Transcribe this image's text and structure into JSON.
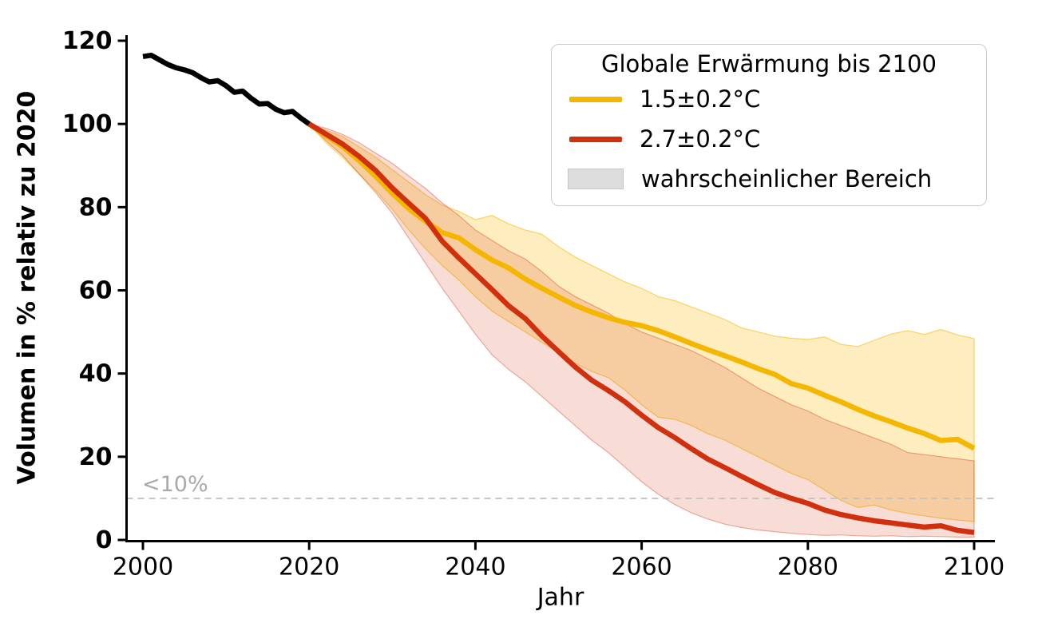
{
  "chart_data": {
    "type": "line",
    "title": "",
    "xlabel": "Jahr",
    "ylabel": "Volumen in % relativ zu 2020",
    "x_ticks": [
      2000,
      2020,
      2040,
      2060,
      2080,
      2100
    ],
    "y_ticks": [
      0,
      20,
      40,
      60,
      80,
      100,
      120
    ],
    "xlim": [
      1998,
      2102.2
    ],
    "ylim": [
      0,
      121.5
    ],
    "grid": false,
    "threshold": {
      "label": "<10%",
      "value": 10,
      "line_color": "#c2c2c2",
      "text_color": "#a9a9a9",
      "style": "dashed"
    },
    "legend": {
      "title": "Globale Erwärmung bis 2100",
      "position": "upper right",
      "entries": [
        {
          "label": "1.5±0.2°C",
          "color": "#f5b600",
          "type": "line"
        },
        {
          "label": "2.7±0.2°C",
          "color": "#d0300e",
          "type": "line"
        },
        {
          "label": "wahrscheinlicher Bereich",
          "color": "#dcdcdc",
          "type": "patch"
        }
      ]
    },
    "series": [
      {
        "id": "beobachtung",
        "type": "line",
        "color": "#000000",
        "x": [
          2000,
          2001,
          2002,
          2003,
          2004,
          2005,
          2006,
          2007,
          2008,
          2009,
          2010,
          2011,
          2012,
          2013,
          2014,
          2015,
          2016,
          2017,
          2018,
          2019,
          2020
        ],
        "y": [
          116.2,
          116.5,
          115.4,
          114.3,
          113.5,
          113.0,
          112.3,
          111.1,
          110.1,
          110.4,
          109.2,
          107.6,
          107.9,
          106.2,
          104.8,
          104.9,
          103.5,
          102.7,
          103.0,
          101.4,
          100.0
        ]
      },
      {
        "id": "szenario-1p5",
        "label": "1.5±0.2°C",
        "type": "line-with-band",
        "color": "#f5b600",
        "band_fill": "rgba(246,182,0,0.25)",
        "band_edge": "rgba(246,182,0,0.55)",
        "x": [
          2020,
          2022,
          2024,
          2026,
          2028,
          2030,
          2032,
          2034,
          2036,
          2038,
          2040,
          2042,
          2044,
          2046,
          2048,
          2050,
          2052,
          2054,
          2056,
          2058,
          2060,
          2062,
          2064,
          2066,
          2068,
          2070,
          2072,
          2074,
          2076,
          2078,
          2080,
          2082,
          2084,
          2086,
          2088,
          2090,
          2092,
          2094,
          2096,
          2098,
          2100
        ],
        "median": [
          100,
          97.2,
          94.6,
          91.2,
          87.4,
          83.3,
          79.6,
          76.6,
          73.9,
          72.6,
          69.8,
          67.3,
          65.4,
          62.7,
          60.5,
          58.4,
          56.4,
          54.8,
          53.4,
          52.3,
          51.5,
          50.3,
          48.8,
          47.2,
          45.7,
          44.3,
          42.8,
          41.2,
          39.8,
          37.6,
          36.5,
          34.8,
          33.2,
          31.4,
          29.8,
          28.4,
          26.9,
          25.6,
          23.9,
          24.2,
          22.0
        ],
        "upper": [
          100,
          98.5,
          97.0,
          94.5,
          92.0,
          89.0,
          86.0,
          83.0,
          80.5,
          79.0,
          77.0,
          78.0,
          76.0,
          74.5,
          73.5,
          70.5,
          68.0,
          66.0,
          64.0,
          62.0,
          60.5,
          58.5,
          57.5,
          56.0,
          54.5,
          53.0,
          51.0,
          50.0,
          49.0,
          48.5,
          48.2,
          48.8,
          47.0,
          46.5,
          48.0,
          49.5,
          50.3,
          49.4,
          50.6,
          49.3,
          48.4
        ],
        "lower": [
          100,
          95.5,
          92.0,
          88.0,
          84.0,
          79.5,
          74.5,
          70.0,
          66.0,
          62.5,
          58.5,
          55.0,
          52.5,
          50.0,
          47.5,
          45.0,
          42.5,
          40.5,
          39.0,
          36.0,
          32.5,
          29.5,
          29.0,
          27.5,
          25.5,
          24.0,
          22.0,
          20.0,
          18.0,
          16.0,
          14.5,
          12.0,
          9.5,
          7.8,
          8.4,
          7.2,
          6.4,
          5.8,
          5.2,
          4.8,
          4.4
        ]
      },
      {
        "id": "szenario-2p7",
        "label": "2.7±0.2°C",
        "type": "line-with-band",
        "color": "#d0300e",
        "band_fill": "rgba(212,49,14,0.17)",
        "band_edge": "rgba(212,49,14,0.38)",
        "x": [
          2020,
          2022,
          2024,
          2026,
          2028,
          2030,
          2032,
          2034,
          2036,
          2038,
          2040,
          2042,
          2044,
          2046,
          2048,
          2050,
          2052,
          2054,
          2056,
          2058,
          2060,
          2062,
          2064,
          2066,
          2068,
          2070,
          2072,
          2074,
          2076,
          2078,
          2080,
          2082,
          2084,
          2086,
          2088,
          2090,
          2092,
          2094,
          2096,
          2098,
          2100
        ],
        "median": [
          100,
          97.6,
          95.2,
          92.2,
          88.8,
          84.6,
          80.9,
          77.3,
          71.8,
          67.8,
          64.0,
          60.2,
          56.3,
          53.2,
          49.0,
          45.3,
          41.6,
          38.4,
          35.9,
          33.2,
          30.0,
          27.0,
          24.6,
          21.9,
          19.4,
          17.4,
          15.3,
          13.3,
          11.4,
          10.0,
          8.8,
          7.2,
          6.1,
          5.3,
          4.6,
          4.1,
          3.6,
          3.1,
          3.4,
          2.3,
          1.8
        ],
        "upper": [
          100,
          99.0,
          97.5,
          95.5,
          93.0,
          90.5,
          87.5,
          84.5,
          81.0,
          78.0,
          74.5,
          72.0,
          69.5,
          67.5,
          64.5,
          61.0,
          58.5,
          56.5,
          54.5,
          52.0,
          50.0,
          48.5,
          47.0,
          45.5,
          43.5,
          41.5,
          39.0,
          36.5,
          34.5,
          32.5,
          31.0,
          29.0,
          27.5,
          26.0,
          24.5,
          23.0,
          21.0,
          20.5,
          20.0,
          19.5,
          19.0
        ],
        "lower": [
          100,
          96.0,
          92.5,
          88.0,
          83.5,
          78.5,
          72.5,
          66.5,
          60.5,
          55.0,
          49.5,
          44.5,
          41.0,
          38.0,
          34.5,
          31.0,
          27.5,
          24.0,
          21.0,
          17.5,
          14.0,
          11.0,
          8.5,
          6.5,
          5.0,
          3.8,
          3.0,
          2.4,
          2.0,
          1.6,
          1.3,
          1.1,
          1.2,
          1.0,
          0.9,
          1.0,
          0.8,
          0.9,
          0.8,
          0.7,
          0.7
        ]
      }
    ]
  },
  "axes": {
    "x_label": "Jahr",
    "y_label": "Volumen in % relativ zu 2020"
  },
  "legend_ui": {
    "title": "Globale Erwärmung bis 2100",
    "entry1": "1.5±0.2°C",
    "entry2": "2.7±0.2°C",
    "entry3": "wahrscheinlicher Bereich"
  }
}
